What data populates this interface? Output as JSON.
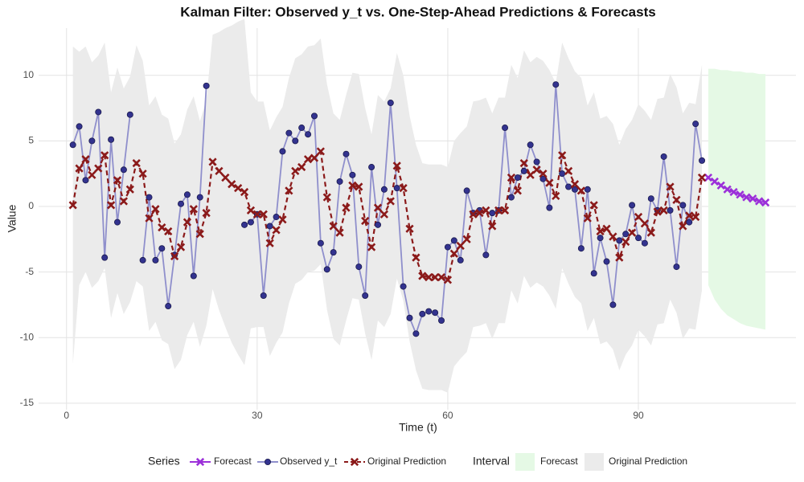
{
  "chart_data": {
    "type": "line",
    "title": "Kalman Filter: Observed y_t vs. One-Step-Ahead Predictions & Forecasts",
    "x_label": "Time (t)",
    "y_label": "Value",
    "xlim": [
      -4.4,
      114.8
    ],
    "ylim": [
      -15.5,
      13.6
    ],
    "xticks": [
      0,
      30,
      60,
      90
    ],
    "yticks": [
      -15,
      -10,
      -5,
      0,
      5,
      10
    ],
    "grid": true,
    "legend_position": "bottom",
    "legend_title": "Series",
    "series": [
      {
        "name": "Forecast",
        "color": "#9b30d9",
        "marker": "x",
        "linestyle": "solid",
        "x": [
          101,
          102,
          103,
          104,
          105,
          106,
          107,
          108,
          109,
          110
        ],
        "values": [
          2.2,
          1.9,
          1.6,
          1.3,
          1.1,
          0.9,
          0.7,
          0.6,
          0.4,
          0.3
        ]
      },
      {
        "name": "Observed y_t",
        "color": "#8f8fcc",
        "marker_color": "#33338f",
        "marker": "circle",
        "linestyle": "solid",
        "x": [
          1,
          2,
          3,
          4,
          5,
          6,
          7,
          8,
          9,
          10,
          11,
          12,
          13,
          14,
          15,
          16,
          17,
          18,
          19,
          20,
          21,
          22,
          23,
          24,
          25,
          26,
          27,
          28,
          29,
          30,
          31,
          32,
          33,
          34,
          35,
          36,
          37,
          38,
          39,
          40,
          41,
          42,
          43,
          44,
          45,
          46,
          47,
          48,
          49,
          50,
          51,
          52,
          53,
          54,
          55,
          56,
          57,
          58,
          59,
          60,
          61,
          62,
          63,
          64,
          65,
          66,
          67,
          68,
          69,
          70,
          71,
          72,
          73,
          74,
          75,
          76,
          77,
          78,
          79,
          80,
          81,
          82,
          83,
          84,
          85,
          86,
          87,
          88,
          89,
          90,
          91,
          92,
          93,
          94,
          95,
          96,
          97,
          98,
          99,
          100
        ],
        "values": [
          4.7,
          6.1,
          2.0,
          5.0,
          7.2,
          -3.9,
          5.1,
          -1.2,
          2.8,
          7.0,
          null,
          -4.1,
          0.7,
          -4.1,
          -3.2,
          -7.6,
          -3.7,
          0.2,
          0.9,
          -5.3,
          0.7,
          9.2,
          null,
          null,
          null,
          null,
          null,
          -1.4,
          -1.2,
          -0.6,
          -6.8,
          -1.5,
          -0.8,
          4.2,
          5.6,
          5.0,
          6.0,
          5.5,
          6.9,
          -2.8,
          -4.8,
          -3.5,
          1.9,
          4.0,
          2.4,
          -4.6,
          -6.8,
          3.0,
          -1.4,
          1.3,
          7.9,
          1.4,
          -6.1,
          -8.5,
          -9.7,
          -8.2,
          -8.0,
          -8.1,
          -8.7,
          -3.1,
          -2.6,
          -4.1,
          1.2,
          -0.5,
          -0.3,
          -3.7,
          -0.5,
          -0.3,
          6.0,
          0.7,
          2.2,
          2.7,
          4.7,
          3.4,
          2.1,
          -0.1,
          9.3,
          2.5,
          1.5,
          1.3,
          -3.2,
          1.3,
          -5.1,
          -2.4,
          -4.2,
          -7.5,
          -2.6,
          -2.1,
          0.1,
          -2.4,
          -2.8,
          0.6,
          -0.3,
          3.8,
          -0.3,
          -4.6,
          0.1,
          -1.2,
          6.3,
          3.5
        ]
      },
      {
        "name": "Original Prediction",
        "color": "#8b1a1a",
        "marker": "x",
        "linestyle": "dashed",
        "x": [
          1,
          2,
          3,
          4,
          5,
          6,
          7,
          8,
          9,
          10,
          11,
          12,
          13,
          14,
          15,
          16,
          17,
          18,
          19,
          20,
          21,
          22,
          23,
          24,
          25,
          26,
          27,
          28,
          29,
          30,
          31,
          32,
          33,
          34,
          35,
          36,
          37,
          38,
          39,
          40,
          41,
          42,
          43,
          44,
          45,
          46,
          47,
          48,
          49,
          50,
          51,
          52,
          53,
          54,
          55,
          56,
          57,
          58,
          59,
          60,
          61,
          62,
          63,
          64,
          65,
          66,
          67,
          68,
          69,
          70,
          71,
          72,
          73,
          74,
          75,
          76,
          77,
          78,
          79,
          80,
          81,
          82,
          83,
          84,
          85,
          86,
          87,
          88,
          89,
          90,
          91,
          92,
          93,
          94,
          95,
          96,
          97,
          98,
          99,
          100
        ],
        "values": [
          0.1,
          2.9,
          3.6,
          2.4,
          2.9,
          3.9,
          0.1,
          2.0,
          0.4,
          1.3,
          3.3,
          2.5,
          -0.9,
          -0.2,
          -1.6,
          -1.9,
          -3.8,
          -3.1,
          -1.2,
          -0.2,
          -2.1,
          -0.5,
          3.4,
          2.7,
          2.2,
          1.7,
          1.4,
          1.1,
          -0.3,
          -0.6,
          -0.6,
          -2.8,
          -1.8,
          -1.0,
          1.2,
          2.7,
          3.0,
          3.6,
          3.7,
          4.2,
          0.7,
          -1.5,
          -2.0,
          -0.1,
          1.6,
          1.5,
          -1.1,
          -3.1,
          -0.1,
          -0.6,
          0.4,
          3.1,
          1.4,
          -1.7,
          -3.9,
          -5.3,
          -5.4,
          -5.4,
          -5.4,
          -5.6,
          -3.6,
          -3.0,
          -2.5,
          -0.6,
          -0.5,
          -0.3,
          -1.5,
          -0.3,
          -0.3,
          2.2,
          1.2,
          3.3,
          2.4,
          2.8,
          2.5,
          1.8,
          0.8,
          3.9,
          2.7,
          1.7,
          1.2,
          -0.9,
          0.1,
          -1.9,
          -1.7,
          -2.3,
          -3.9,
          -2.7,
          -2.0,
          -0.8,
          -1.3,
          -2.0,
          -0.4,
          -0.3,
          1.5,
          0.5,
          -1.5,
          -0.7,
          -0.8,
          2.2
        ]
      }
    ],
    "interval_legend_title": "Interval",
    "bands": [
      {
        "name": "Forecast",
        "color": "#e5f9e5",
        "x": [
          101,
          102,
          103,
          104,
          105,
          106,
          107,
          108,
          109,
          110
        ],
        "upper": [
          10.5,
          10.5,
          10.4,
          10.4,
          10.3,
          10.3,
          10.2,
          10.2,
          10.1,
          10.1
        ],
        "lower": [
          -6.0,
          -7.1,
          -7.8,
          -8.3,
          -8.6,
          -8.9,
          -9.1,
          -9.2,
          -9.3,
          -9.4
        ]
      },
      {
        "name": "Original Prediction",
        "color": "#ebebeb",
        "x": [
          1,
          2,
          3,
          4,
          5,
          6,
          7,
          8,
          9,
          10,
          11,
          12,
          13,
          14,
          15,
          16,
          17,
          18,
          19,
          20,
          21,
          22,
          23,
          24,
          25,
          26,
          27,
          28,
          29,
          30,
          31,
          32,
          33,
          34,
          35,
          36,
          37,
          38,
          39,
          40,
          41,
          42,
          43,
          44,
          45,
          46,
          47,
          48,
          49,
          50,
          51,
          52,
          53,
          54,
          55,
          56,
          57,
          58,
          59,
          60,
          61,
          62,
          63,
          64,
          65,
          66,
          67,
          68,
          69,
          70,
          71,
          72,
          73,
          74,
          75,
          76,
          77,
          78,
          79,
          80,
          81,
          82,
          83,
          84,
          85,
          86,
          87,
          88,
          89,
          90,
          91,
          92,
          93,
          94,
          95,
          96,
          97,
          98,
          99,
          100
        ],
        "upper": [
          12.2,
          11.8,
          12.2,
          11.0,
          11.5,
          12.5,
          8.7,
          10.6,
          9.0,
          9.9,
          12.3,
          11.1,
          7.7,
          8.4,
          7.0,
          6.7,
          4.8,
          5.5,
          7.4,
          8.4,
          6.5,
          8.1,
          13.1,
          13.3,
          13.6,
          13.8,
          14.1,
          14.3,
          8.7,
          8.0,
          8.0,
          5.8,
          6.8,
          7.6,
          9.8,
          11.3,
          11.6,
          12.2,
          12.3,
          12.8,
          9.3,
          7.1,
          6.6,
          8.5,
          10.2,
          10.1,
          7.5,
          5.5,
          8.5,
          8.0,
          9.0,
          11.7,
          10.0,
          6.9,
          4.7,
          3.3,
          3.2,
          3.2,
          3.2,
          3.0,
          5.0,
          5.6,
          6.1,
          8.0,
          8.1,
          8.3,
          7.1,
          8.3,
          8.3,
          10.8,
          9.8,
          11.9,
          11.0,
          11.4,
          11.1,
          10.4,
          9.4,
          12.5,
          11.3,
          10.3,
          9.8,
          7.7,
          8.7,
          6.7,
          6.9,
          6.3,
          4.7,
          5.9,
          6.6,
          7.8,
          7.3,
          6.6,
          8.2,
          8.3,
          10.1,
          9.1,
          7.1,
          7.9,
          7.8,
          10.8
        ],
        "lower": [
          -12.0,
          -6.0,
          -5.0,
          -6.2,
          -5.7,
          -4.7,
          -8.5,
          -6.6,
          -8.2,
          -7.3,
          -5.7,
          -6.1,
          -9.5,
          -8.8,
          -10.2,
          -10.5,
          -12.4,
          -11.7,
          -9.8,
          -8.8,
          -10.7,
          -9.1,
          -6.3,
          -7.9,
          -9.2,
          -10.4,
          -11.3,
          -12.1,
          -9.3,
          -9.2,
          -9.2,
          -11.4,
          -10.4,
          -9.6,
          -7.4,
          -5.9,
          -5.6,
          -5.0,
          -4.9,
          -4.4,
          -7.9,
          -10.1,
          -10.6,
          -8.7,
          -7.0,
          -7.1,
          -9.7,
          -11.7,
          -8.7,
          -9.2,
          -8.2,
          -5.5,
          -7.2,
          -10.3,
          -12.5,
          -13.9,
          -14.0,
          -14.0,
          -14.0,
          -14.2,
          -12.2,
          -11.6,
          -11.1,
          -9.2,
          -9.1,
          -8.9,
          -10.1,
          -8.9,
          -8.9,
          -6.4,
          -7.4,
          -5.3,
          -6.2,
          -5.8,
          -6.1,
          -6.8,
          -7.8,
          -4.7,
          -5.9,
          -6.9,
          -7.4,
          -9.5,
          -8.5,
          -10.5,
          -10.3,
          -10.9,
          -12.5,
          -11.3,
          -10.6,
          -9.4,
          -9.9,
          -10.6,
          -9.0,
          -8.9,
          -7.1,
          -8.1,
          -10.1,
          -9.3,
          -9.4,
          -6.4
        ]
      }
    ]
  }
}
